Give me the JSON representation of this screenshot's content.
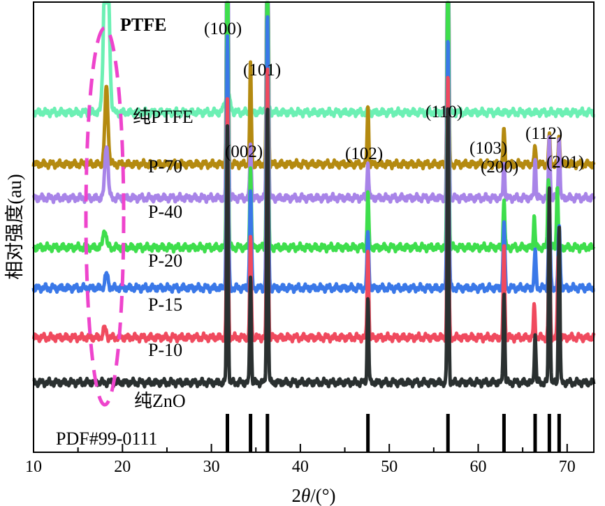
{
  "chart_data": {
    "type": "line",
    "xlabel_prefix": "2",
    "xlabel_var": "θ",
    "xlabel_unit": "/(°)",
    "ylabel": "相对强度(au)",
    "xlim": [
      10,
      73
    ],
    "xticks": [
      "10",
      "20",
      "30",
      "40",
      "50",
      "60",
      "70"
    ],
    "series": [
      {
        "name": "纯PTFE",
        "color": "#6cf0b4",
        "width": 5,
        "baseline": 0.755,
        "peaks": [
          [
            18.2,
            0.52,
            0.35
          ],
          [
            31.8,
            0.04,
            0.4
          ],
          [
            36.2,
            0.015,
            0.4
          ]
        ]
      },
      {
        "name": "P-70",
        "color": "#b48a10",
        "width": 5,
        "baseline": 0.64,
        "peaks": [
          [
            18.2,
            0.17,
            0.25
          ],
          [
            31.8,
            0.76,
            0.12
          ],
          [
            34.4,
            0.22,
            0.12
          ],
          [
            36.3,
            0.96,
            0.12
          ],
          [
            47.6,
            0.13,
            0.12
          ],
          [
            56.6,
            0.67,
            0.12
          ],
          [
            62.9,
            0.08,
            0.12
          ],
          [
            66.4,
            0.04,
            0.12
          ],
          [
            68.0,
            0.06,
            0.12
          ],
          [
            69.1,
            0.06,
            0.12
          ]
        ]
      },
      {
        "name": "P-40",
        "color": "#a884e8",
        "width": 5,
        "baseline": 0.565,
        "peaks": [
          [
            18.2,
            0.12,
            0.25
          ],
          [
            31.8,
            1.2,
            0.12
          ],
          [
            34.4,
            0.12,
            0.12
          ],
          [
            36.3,
            1.2,
            0.12
          ],
          [
            47.6,
            0.08,
            0.12
          ],
          [
            56.6,
            1.2,
            0.12
          ],
          [
            62.9,
            0.08,
            0.12
          ],
          [
            66.4,
            0.09,
            0.12
          ],
          [
            68.0,
            0.14,
            0.12
          ],
          [
            69.1,
            0.14,
            0.12
          ]
        ]
      },
      {
        "name": "P-20",
        "color": "#3ede4c",
        "width": 5,
        "baseline": 0.455,
        "peaks": [
          [
            18.0,
            0.04,
            0.25
          ],
          [
            31.8,
            0.85,
            0.12
          ],
          [
            34.4,
            0.18,
            0.12
          ],
          [
            36.3,
            0.85,
            0.12
          ],
          [
            47.6,
            0.12,
            0.12
          ],
          [
            56.6,
            0.85,
            0.12
          ],
          [
            62.9,
            0.11,
            0.12
          ],
          [
            66.3,
            0.07,
            0.12
          ],
          [
            67.9,
            0.16,
            0.12
          ],
          [
            68.9,
            0.14,
            0.12
          ]
        ]
      },
      {
        "name": "P-15",
        "color": "#3a78e8",
        "width": 5,
        "baseline": 0.365,
        "peaks": [
          [
            18.2,
            0.03,
            0.25
          ],
          [
            31.8,
            0.56,
            0.14
          ],
          [
            34.4,
            0.22,
            0.14
          ],
          [
            36.3,
            0.6,
            0.14
          ],
          [
            47.6,
            0.12,
            0.14
          ],
          [
            56.6,
            0.56,
            0.14
          ],
          [
            62.9,
            0.14,
            0.14
          ],
          [
            66.4,
            0.08,
            0.14
          ],
          [
            68.0,
            0.17,
            0.14
          ],
          [
            69.1,
            0.14,
            0.14
          ]
        ]
      },
      {
        "name": "P-10",
        "color": "#f04a5e",
        "width": 5,
        "baseline": 0.255,
        "peaks": [
          [
            18.0,
            0.02,
            0.25
          ],
          [
            31.8,
            0.53,
            0.12
          ],
          [
            34.4,
            0.22,
            0.12
          ],
          [
            36.3,
            0.61,
            0.12
          ],
          [
            47.6,
            0.2,
            0.12
          ],
          [
            56.6,
            0.59,
            0.12
          ],
          [
            62.9,
            0.2,
            0.12
          ],
          [
            66.3,
            0.07,
            0.12
          ],
          [
            68.0,
            0.26,
            0.12
          ],
          [
            69.0,
            0.18,
            0.12
          ]
        ]
      },
      {
        "name": "纯ZnO",
        "color": "#2a3030",
        "width": 5,
        "baseline": 0.155,
        "peaks": [
          [
            31.8,
            0.57,
            0.12
          ],
          [
            34.4,
            0.24,
            0.12
          ],
          [
            36.3,
            0.62,
            0.12
          ],
          [
            47.6,
            0.19,
            0.12
          ],
          [
            56.6,
            0.62,
            0.12
          ],
          [
            62.9,
            0.2,
            0.12
          ],
          [
            66.4,
            0.11,
            0.12
          ],
          [
            68.0,
            0.44,
            0.12
          ],
          [
            69.1,
            0.35,
            0.12
          ]
        ]
      }
    ],
    "reference": {
      "name": "PDF#99-0111",
      "color": "#000000",
      "lines": [
        31.8,
        34.4,
        36.3,
        47.6,
        56.6,
        62.9,
        66.4,
        68.0,
        69.1
      ]
    },
    "annotations": [
      {
        "text": "PTFE"
      },
      {
        "text": "(100)",
        "x": 31.8
      },
      {
        "text": "(101)",
        "x": 36.3
      },
      {
        "text": "(110)",
        "x": 56.6
      },
      {
        "text": "(002)",
        "x": 34.4
      },
      {
        "text": "(102)",
        "x": 47.6
      },
      {
        "text": "(103)",
        "x": 62.9
      },
      {
        "text": "(112)",
        "x": 68.0
      },
      {
        "text": "(200)",
        "x": 66.4
      },
      {
        "text": "(201)",
        "x": 69.1
      }
    ],
    "highlight_color": "#ee44cc"
  }
}
